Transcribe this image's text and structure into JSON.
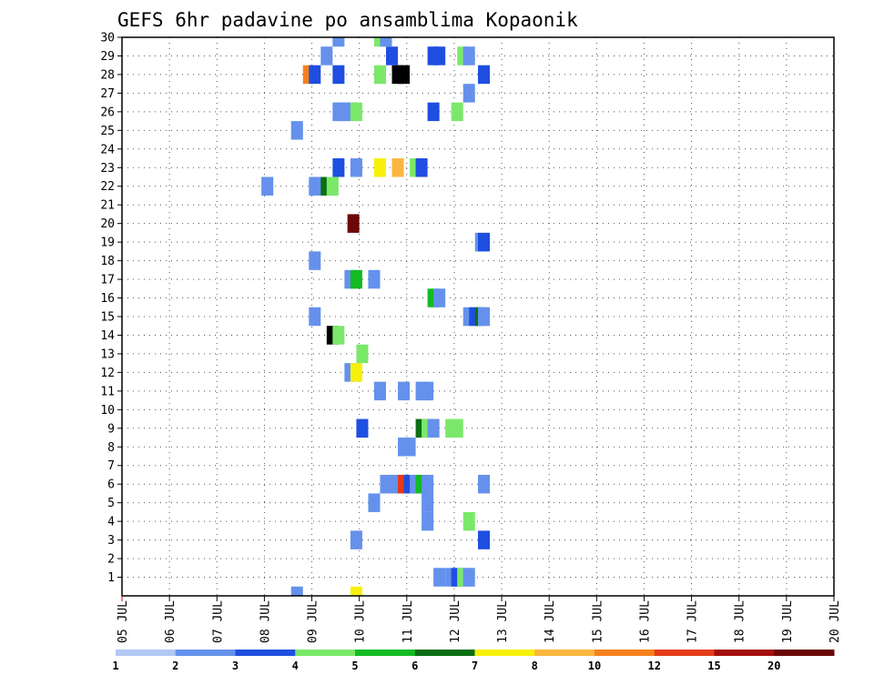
{
  "chart_data": {
    "type": "heatmap",
    "title": "GEFS 6hr padavine po ansamblima Kopaonik",
    "xlabel": "",
    "ylabel": "",
    "x_tick_labels": [
      "05 JUL",
      "06 JUL",
      "07 JUL",
      "08 JUL",
      "09 JUL",
      "10 JUL",
      "11 JUL",
      "12 JUL",
      "13 JUL",
      "14 JUL",
      "15 JUL",
      "16 JUL",
      "17 JUL",
      "18 JUL",
      "19 JUL",
      "20 JUL"
    ],
    "y_tick_labels": [
      "1",
      "2",
      "3",
      "4",
      "5",
      "6",
      "7",
      "8",
      "9",
      "10",
      "11",
      "12",
      "13",
      "14",
      "15",
      "16",
      "17",
      "18",
      "19",
      "20",
      "21",
      "22",
      "23",
      "24",
      "25",
      "26",
      "27",
      "28",
      "29",
      "30"
    ],
    "xlim": [
      0,
      60
    ],
    "ylim": [
      0,
      30
    ],
    "grid": true,
    "colorbar": {
      "ticks": [
        "1",
        "2",
        "3",
        "4",
        "5",
        "6",
        "7",
        "8",
        "10",
        "12",
        "15",
        "20"
      ],
      "colors": [
        "#b3c8f5",
        "#6591ec",
        "#1f4fe0",
        "#7be86a",
        "#12bb23",
        "#0b6e14",
        "#f7f00a",
        "#fbb640",
        "#f6801c",
        "#e43b1a",
        "#a40d0d",
        "#6b0707"
      ]
    },
    "member_rows": [
      {
        "member": 1,
        "cells": [
          [
            26.75,
            1
          ],
          [
            27.75,
            1
          ],
          [
            28.25,
            2
          ],
          [
            28.75,
            3
          ],
          [
            29.25,
            1
          ]
        ]
      },
      {
        "member": 3,
        "cells": [
          [
            19.75,
            1
          ],
          [
            30.5,
            2
          ]
        ]
      },
      {
        "member": 4,
        "cells": [
          [
            25.75,
            1
          ],
          [
            29.25,
            3
          ]
        ]
      },
      {
        "member": 5,
        "cells": [
          [
            21.25,
            1
          ],
          [
            25.75,
            1
          ]
        ]
      },
      {
        "member": 6,
        "cells": [
          [
            22.25,
            1
          ],
          [
            23.25,
            1
          ],
          [
            23.75,
            9
          ],
          [
            24.25,
            2
          ],
          [
            24.75,
            1
          ],
          [
            25.25,
            4
          ],
          [
            25.75,
            1
          ],
          [
            30.5,
            1
          ]
        ]
      },
      {
        "member": 8,
        "cells": [
          [
            23.75,
            1
          ],
          [
            24.25,
            1
          ]
        ]
      },
      {
        "member": 9,
        "cells": [
          [
            20.25,
            2
          ],
          [
            25.25,
            5
          ],
          [
            25.75,
            3
          ],
          [
            26.25,
            1
          ],
          [
            27.75,
            3
          ],
          [
            28.25,
            3
          ]
        ]
      },
      {
        "member": 11,
        "cells": [
          [
            21.75,
            1
          ],
          [
            23.75,
            1
          ],
          [
            25.25,
            1
          ],
          [
            25.75,
            1
          ]
        ]
      },
      {
        "member": 12,
        "cells": [
          [
            19.25,
            1
          ],
          [
            19.75,
            6
          ]
        ]
      },
      {
        "member": 13,
        "cells": [
          [
            20.25,
            3
          ]
        ]
      },
      {
        "member": 14,
        "cells": [
          [
            17.75,
            12
          ],
          [
            18.25,
            3
          ]
        ]
      },
      {
        "member": 15,
        "cells": [
          [
            16.25,
            1
          ],
          [
            29.25,
            1
          ],
          [
            29.75,
            2
          ],
          [
            30.25,
            5
          ],
          [
            30.5,
            1
          ]
        ]
      },
      {
        "member": 16,
        "cells": [
          [
            26.25,
            4
          ],
          [
            26.75,
            1
          ]
        ]
      },
      {
        "member": 17,
        "cells": [
          [
            19.25,
            1
          ],
          [
            19.75,
            4
          ],
          [
            21.25,
            1
          ]
        ]
      },
      {
        "member": 18,
        "cells": [
          [
            16.25,
            1
          ]
        ]
      },
      {
        "member": 19,
        "cells": [
          [
            30.25,
            1
          ],
          [
            30.5,
            2
          ]
        ]
      },
      {
        "member": 20,
        "cells": [
          [
            19.5,
            11
          ]
        ]
      },
      {
        "member": 22,
        "cells": [
          [
            12.25,
            1
          ],
          [
            16.25,
            1
          ],
          [
            16.75,
            1
          ],
          [
            17.25,
            5
          ],
          [
            17.75,
            3
          ]
        ]
      },
      {
        "member": 23,
        "cells": [
          [
            18.25,
            2
          ],
          [
            19.75,
            1
          ],
          [
            21.75,
            6
          ],
          [
            23.25,
            7
          ],
          [
            24.75,
            3
          ],
          [
            25.25,
            2
          ]
        ]
      },
      {
        "member": 25,
        "cells": [
          [
            14.75,
            1
          ]
        ]
      },
      {
        "member": 26,
        "cells": [
          [
            18.25,
            1
          ],
          [
            18.75,
            1
          ],
          [
            19.25,
            1
          ],
          [
            19.75,
            3
          ],
          [
            26.25,
            2
          ],
          [
            28.25,
            3
          ]
        ]
      },
      {
        "member": 27,
        "cells": [
          [
            29.25,
            1
          ]
        ]
      },
      {
        "member": 28,
        "cells": [
          [
            15.75,
            8
          ],
          [
            16.25,
            2
          ],
          [
            18.25,
            2
          ],
          [
            21.75,
            3
          ],
          [
            23.25,
            12
          ],
          [
            23.75,
            12
          ],
          [
            30.5,
            2
          ]
        ]
      },
      {
        "member": 29,
        "cells": [
          [
            17.25,
            1
          ],
          [
            22.75,
            2
          ],
          [
            26.25,
            2
          ],
          [
            26.75,
            2
          ],
          [
            28.75,
            3
          ],
          [
            29.25,
            1
          ]
        ]
      },
      {
        "member": 30,
        "cells": [
          [
            18.25,
            1
          ],
          [
            21.75,
            3
          ],
          [
            22.25,
            1
          ]
        ]
      },
      {
        "member": 0,
        "cells": [
          [
            14.75,
            1
          ],
          [
            19.75,
            6
          ]
        ]
      }
    ]
  }
}
